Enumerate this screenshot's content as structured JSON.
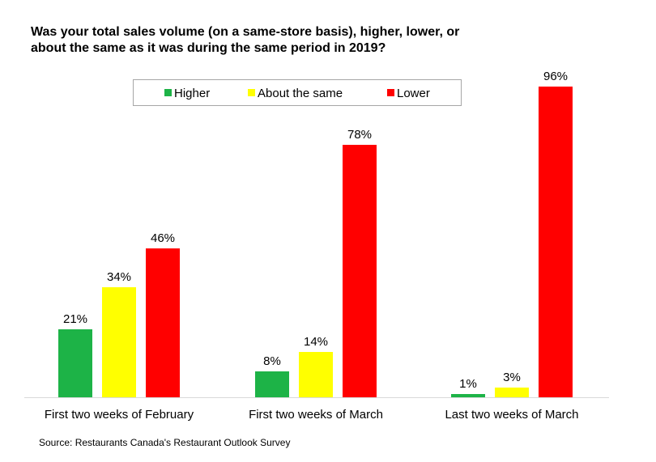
{
  "title_lines": [
    "Was your total sales volume (on a same-store basis), higher, lower, or",
    "about the same as it was during the same period in 2019?"
  ],
  "source": "Source: Restaurants Canada's Restaurant Outlook Survey",
  "chart_data": {
    "type": "bar",
    "title": "Was your total sales volume (on a same-store basis), higher, lower, or about the same as it was during the same period in 2019?",
    "categories": [
      "First two weeks of February",
      "First two weeks of March",
      "Last two weeks of March"
    ],
    "series": [
      {
        "name": "Higher",
        "color": "#1db347",
        "values": [
          21,
          8,
          1
        ]
      },
      {
        "name": "About the same",
        "color": "#ffff00",
        "values": [
          34,
          14,
          3
        ]
      },
      {
        "name": "Lower",
        "color": "#ff0000",
        "values": [
          46,
          78,
          96
        ]
      }
    ],
    "value_suffix": "%",
    "ylim": [
      0,
      100
    ],
    "grid": false,
    "legend_position": "top"
  }
}
